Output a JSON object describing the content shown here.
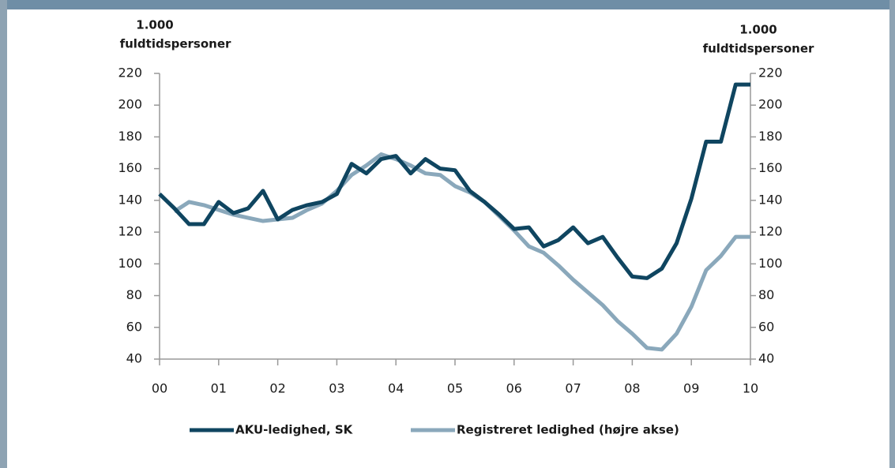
{
  "chart_data": {
    "type": "line",
    "ylabel": [
      "1.000",
      "fuldtidspersoner"
    ],
    "y2label": [
      "1.000",
      "fuldtidspersoner"
    ],
    "x": [
      0,
      0.25,
      0.5,
      0.75,
      1,
      1.25,
      1.5,
      1.75,
      2,
      2.25,
      2.5,
      2.75,
      3,
      3.25,
      3.5,
      3.75,
      4,
      4.25,
      4.5,
      4.75,
      5,
      5.25,
      5.5,
      5.75,
      6,
      6.25,
      6.5,
      6.75,
      7,
      7.25,
      7.5,
      7.75,
      8,
      8.25,
      8.5,
      8.75,
      9,
      9.25,
      9.5,
      9.75,
      10
    ],
    "series": [
      {
        "name": "AKU-ledighed, SK",
        "color": "#0f4560",
        "values": [
          144,
          135,
          125,
          125,
          139,
          132,
          135,
          146,
          128,
          134,
          137,
          139,
          144,
          163,
          157,
          166,
          168,
          157,
          166,
          160,
          159,
          146,
          139,
          131,
          122,
          123,
          111,
          115,
          123,
          113,
          117,
          104,
          92,
          91,
          97,
          113,
          141,
          177,
          177,
          213,
          213
        ]
      },
      {
        "name": "Registreret ledighed (højre akse)",
        "color": "#8aa8bb",
        "axis": "y2",
        "values": [
          null,
          133,
          139,
          137,
          134,
          131,
          129,
          127,
          128,
          129,
          134,
          138,
          146,
          156,
          162,
          169,
          166,
          162,
          157,
          156,
          149,
          145,
          139,
          130,
          121,
          111,
          107,
          99,
          90,
          82,
          74,
          64,
          56,
          47,
          46,
          56,
          73,
          96,
          105,
          117,
          117
        ]
      }
    ],
    "xlim": [
      0,
      10
    ],
    "xticks": [
      {
        "value": 0,
        "label": "00"
      },
      {
        "value": 1,
        "label": "01"
      },
      {
        "value": 2,
        "label": "02"
      },
      {
        "value": 3,
        "label": "03"
      },
      {
        "value": 4,
        "label": "04"
      },
      {
        "value": 5,
        "label": "05"
      },
      {
        "value": 6,
        "label": "06"
      },
      {
        "value": 7,
        "label": "07"
      },
      {
        "value": 8,
        "label": "08"
      },
      {
        "value": 9,
        "label": "09"
      },
      {
        "value": 10,
        "label": "10"
      }
    ],
    "ylim": [
      40,
      220
    ],
    "yticks": [
      40,
      60,
      80,
      100,
      120,
      140,
      160,
      180,
      200,
      220
    ],
    "y2lim": [
      40,
      220
    ],
    "y2ticks": [
      40,
      60,
      80,
      100,
      120,
      140,
      160,
      180,
      200,
      220
    ],
    "legend": "bottom"
  }
}
